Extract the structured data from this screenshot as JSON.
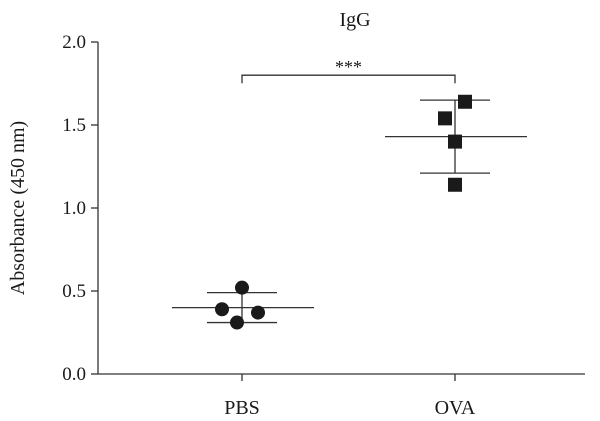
{
  "chart_data": {
    "type": "scatter",
    "title": "IgG",
    "xlabel": "",
    "ylabel": "Absorbance (450 nm)",
    "ylim": [
      0.0,
      2.0
    ],
    "yticks": [
      "0.0",
      "0.5",
      "1.0",
      "1.5",
      "2.0"
    ],
    "grid": false,
    "categories": [
      "PBS",
      "OVA"
    ],
    "series": [
      {
        "category": "PBS",
        "marker": "circle",
        "points": [
          0.39,
          0.52,
          0.31,
          0.37
        ],
        "mean": 0.4,
        "sd_upper": 0.49,
        "sd_lower": 0.31
      },
      {
        "category": "OVA",
        "marker": "square",
        "points": [
          1.54,
          1.64,
          1.4,
          1.14
        ],
        "mean": 1.43,
        "sd_upper": 1.65,
        "sd_lower": 1.21
      }
    ],
    "annotation": {
      "text": "***",
      "between": [
        "PBS",
        "OVA"
      ],
      "y": 1.8
    },
    "colors": {
      "marker": "#1a1a1a",
      "axis": "#333333"
    }
  }
}
